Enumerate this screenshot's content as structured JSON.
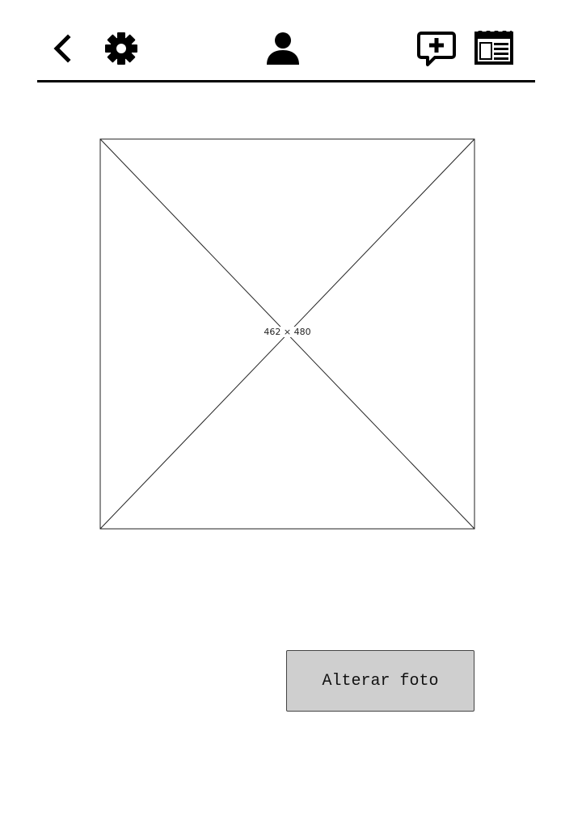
{
  "header": {
    "icons": {
      "back": "chevron-left-icon",
      "settings": "gear-icon",
      "profile": "user-icon",
      "new_post": "chat-plus-icon",
      "feed": "newspaper-icon"
    }
  },
  "main": {
    "image_placeholder": {
      "label": "462 × 480"
    },
    "change_photo_button": {
      "label": "Alterar foto"
    }
  },
  "colors": {
    "button_fill": "#cfcfcf",
    "stroke": "#000000"
  }
}
